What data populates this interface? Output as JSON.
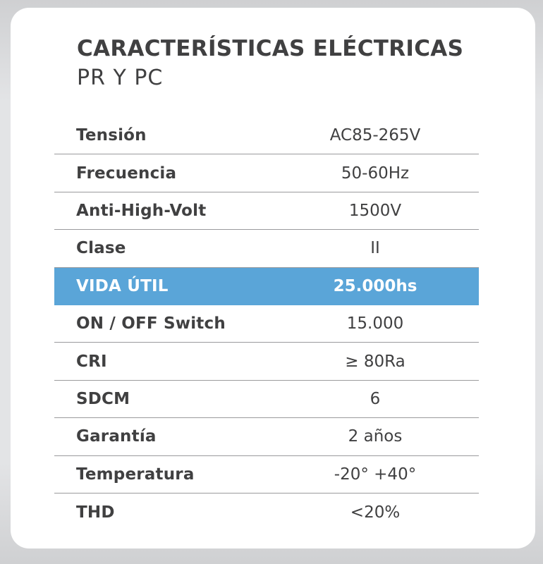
{
  "card": {
    "title": "CARACTERÍSTICAS ELÉCTRICAS",
    "subtitle": "PR Y PC"
  },
  "specs": [
    {
      "label": "Tensión",
      "value": "AC85-265V"
    },
    {
      "label": "Frecuencia",
      "value": "50-60Hz"
    },
    {
      "label": "Anti-High-Volt",
      "value": "1500V"
    },
    {
      "label": "Clase",
      "value": "II"
    },
    {
      "label": "VIDA ÚTIL",
      "value": "25.000hs"
    },
    {
      "label": "ON / OFF Switch",
      "value": "15.000"
    },
    {
      "label": "CRI",
      "value": "≥ 80Ra"
    },
    {
      "label": "SDCM",
      "value": "6"
    },
    {
      "label": "Garantía",
      "value": "2 años"
    },
    {
      "label": "Temperatura",
      "value": "-20° +40°"
    },
    {
      "label": "THD",
      "value": "<20%"
    }
  ],
  "colors": {
    "text": "#404041",
    "highlight_bg": "#5aa5d8",
    "highlight_text": "#ffffff",
    "divider": "#9a9a9c",
    "background": "#e3e4e6",
    "card": "#ffffff"
  }
}
